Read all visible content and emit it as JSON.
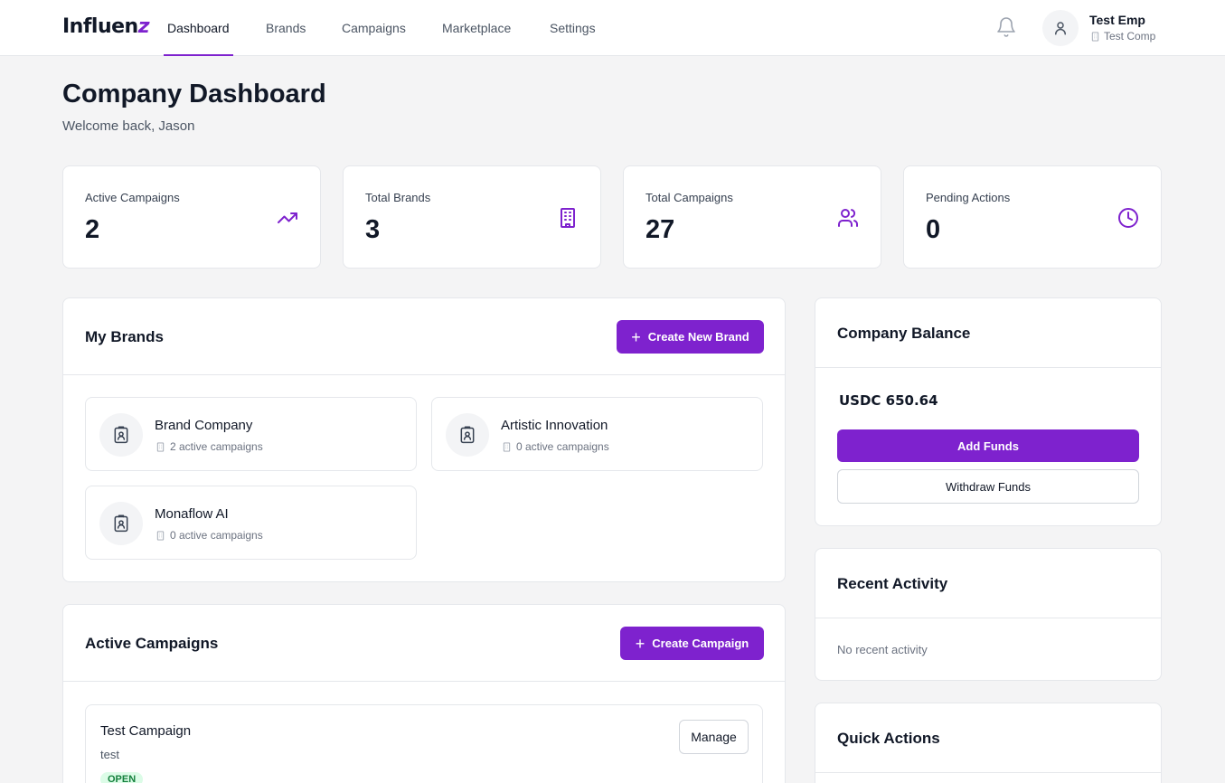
{
  "app": {
    "logo_main": "Influen",
    "logo_accent": "z",
    "accent_color": "#7e22ce"
  },
  "nav": {
    "tabs": [
      {
        "label": "Dashboard",
        "active": true
      },
      {
        "label": "Brands",
        "active": false
      },
      {
        "label": "Campaigns",
        "active": false
      },
      {
        "label": "Marketplace",
        "active": false
      },
      {
        "label": "Settings",
        "active": false
      }
    ],
    "notification_icon": "bell-icon",
    "user": {
      "name": "Test Emp",
      "company": "Test Comp",
      "avatar_icon": "user-icon"
    }
  },
  "header": {
    "title": "Company Dashboard",
    "subtitle": "Welcome back, Jason"
  },
  "stats": [
    {
      "label": "Active Campaigns",
      "value": "2",
      "icon": "trending-up-icon"
    },
    {
      "label": "Total Brands",
      "value": "3",
      "icon": "building-icon"
    },
    {
      "label": "Total Campaigns",
      "value": "27",
      "icon": "users-icon"
    },
    {
      "label": "Pending Actions",
      "value": "0",
      "icon": "clock-icon"
    }
  ],
  "brands": {
    "title": "My Brands",
    "create_label": "Create New Brand",
    "items": [
      {
        "name": "Brand Company",
        "meta": "2 active campaigns"
      },
      {
        "name": "Artistic Innovation",
        "meta": "0 active campaigns"
      },
      {
        "name": "Monaflow AI",
        "meta": "0 active campaigns"
      }
    ]
  },
  "campaigns": {
    "title": "Active Campaigns",
    "create_label": "Create Campaign",
    "items": [
      {
        "title": "Test Campaign",
        "description": "test",
        "status": "OPEN",
        "manage_label": "Manage"
      }
    ]
  },
  "balance": {
    "title": "Company Balance",
    "value": "USDC 650.64",
    "add_label": "Add Funds",
    "withdraw_label": "Withdraw Funds"
  },
  "activity": {
    "title": "Recent Activity",
    "empty": "No recent activity"
  },
  "quick_actions": {
    "title": "Quick Actions"
  }
}
